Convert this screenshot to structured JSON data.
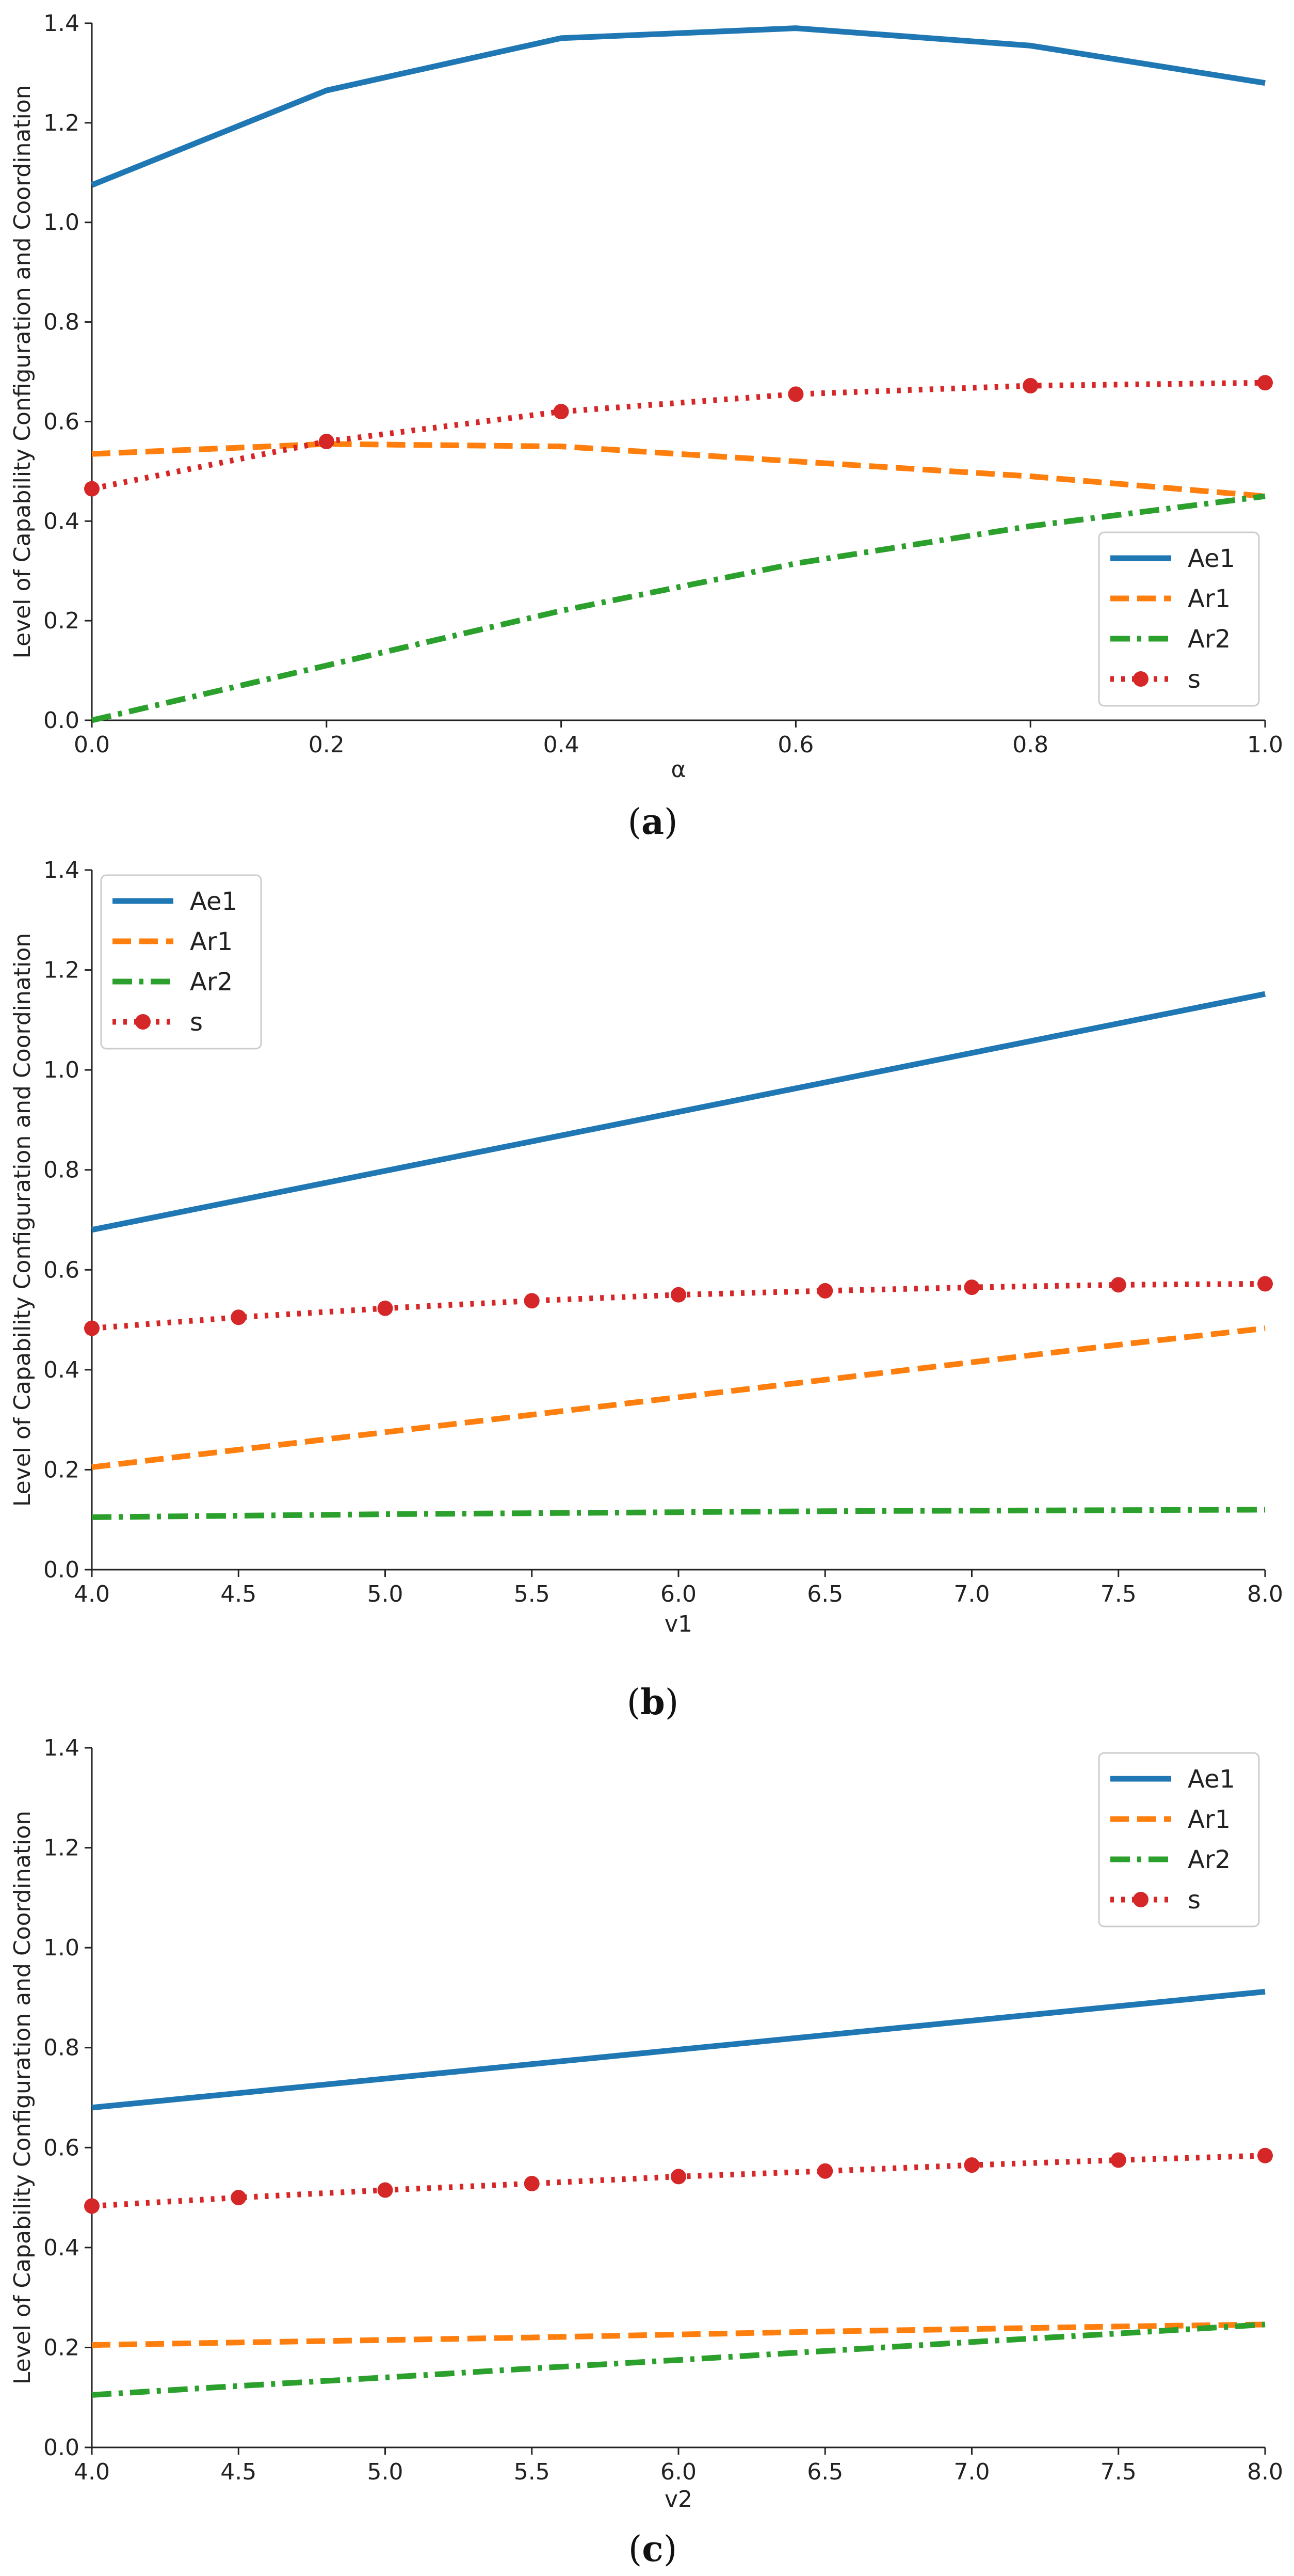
{
  "colors": {
    "Ae1": "#1f77b4",
    "Ar1": "#ff7f0e",
    "Ar2": "#2ca02c",
    "s": "#d62728",
    "axis": "#222222"
  },
  "chart_data": [
    {
      "type": "line",
      "caption": "a",
      "caption_open": "(",
      "caption_close": ")",
      "xlabel": "α",
      "ylabel": "Level of Capability Configuration and Coordination",
      "xlim": [
        0.0,
        1.0
      ],
      "ylim": [
        0.0,
        1.4
      ],
      "xticks": [
        "0.0",
        "0.2",
        "0.4",
        "0.6",
        "0.8",
        "1.0"
      ],
      "yticks": [
        "0.0",
        "0.2",
        "0.4",
        "0.6",
        "0.8",
        "1.0",
        "1.2",
        "1.4"
      ],
      "legend_position": "lower-right",
      "x": [
        0.0,
        0.2,
        0.4,
        0.6,
        0.8,
        1.0
      ],
      "series": [
        {
          "name": "Ae1",
          "style": "solid",
          "values": [
            1.075,
            1.265,
            1.37,
            1.39,
            1.355,
            1.28
          ]
        },
        {
          "name": "Ar1",
          "style": "dashed",
          "values": [
            0.535,
            0.555,
            0.55,
            0.52,
            0.49,
            0.45
          ]
        },
        {
          "name": "Ar2",
          "style": "dashdot",
          "values": [
            0.0,
            0.11,
            0.22,
            0.315,
            0.39,
            0.45
          ]
        },
        {
          "name": "s",
          "style": "dotted-marker",
          "values": [
            0.465,
            0.56,
            0.62,
            0.655,
            0.672,
            0.678
          ]
        }
      ]
    },
    {
      "type": "line",
      "caption": "b",
      "caption_open": "(",
      "caption_close": ")",
      "xlabel": "v1",
      "ylabel": "Level of Capability Configuration and Coordination",
      "xlim": [
        4.0,
        8.0
      ],
      "ylim": [
        0.0,
        1.4
      ],
      "xticks": [
        "4.0",
        "4.5",
        "5.0",
        "5.5",
        "6.0",
        "6.5",
        "7.0",
        "7.5",
        "8.0"
      ],
      "yticks": [
        "0.0",
        "0.2",
        "0.4",
        "0.6",
        "0.8",
        "1.0",
        "1.2",
        "1.4"
      ],
      "legend_position": "upper-left",
      "x": [
        4.0,
        4.5,
        5.0,
        5.5,
        6.0,
        6.5,
        7.0,
        7.5,
        8.0
      ],
      "series": [
        {
          "name": "Ae1",
          "style": "solid",
          "values": [
            0.68,
            0.739,
            0.798,
            0.857,
            0.916,
            0.975,
            1.034,
            1.093,
            1.152
          ]
        },
        {
          "name": "Ar1",
          "style": "dashed",
          "values": [
            0.205,
            0.24,
            0.275,
            0.31,
            0.345,
            0.38,
            0.415,
            0.45,
            0.483
          ]
        },
        {
          "name": "Ar2",
          "style": "dashdot",
          "values": [
            0.105,
            0.108,
            0.111,
            0.113,
            0.115,
            0.117,
            0.118,
            0.119,
            0.12
          ]
        },
        {
          "name": "s",
          "style": "dotted-marker",
          "values": [
            0.483,
            0.505,
            0.523,
            0.538,
            0.55,
            0.558,
            0.565,
            0.57,
            0.572
          ]
        }
      ]
    },
    {
      "type": "line",
      "caption": "c",
      "caption_open": "(",
      "caption_close": ")",
      "xlabel": "v2",
      "ylabel": "Level of Capability Configuration and Coordination",
      "xlim": [
        4.0,
        8.0
      ],
      "ylim": [
        0.0,
        1.4
      ],
      "xticks": [
        "4.0",
        "4.5",
        "5.0",
        "5.5",
        "6.0",
        "6.5",
        "7.0",
        "7.5",
        "8.0"
      ],
      "yticks": [
        "0.0",
        "0.2",
        "0.4",
        "0.6",
        "0.8",
        "1.0",
        "1.2",
        "1.4"
      ],
      "legend_position": "upper-right",
      "x": [
        4.0,
        4.5,
        5.0,
        5.5,
        6.0,
        6.5,
        7.0,
        7.5,
        8.0
      ],
      "series": [
        {
          "name": "Ae1",
          "style": "solid",
          "values": [
            0.68,
            0.709,
            0.738,
            0.767,
            0.796,
            0.825,
            0.854,
            0.883,
            0.912
          ]
        },
        {
          "name": "Ar1",
          "style": "dashed",
          "values": [
            0.205,
            0.21,
            0.215,
            0.22,
            0.226,
            0.232,
            0.237,
            0.242,
            0.246
          ]
        },
        {
          "name": "Ar2",
          "style": "dashdot",
          "values": [
            0.105,
            0.123,
            0.14,
            0.158,
            0.175,
            0.193,
            0.211,
            0.228,
            0.246
          ]
        },
        {
          "name": "s",
          "style": "dotted-marker",
          "values": [
            0.483,
            0.5,
            0.515,
            0.528,
            0.542,
            0.553,
            0.565,
            0.575,
            0.584
          ]
        }
      ]
    }
  ]
}
